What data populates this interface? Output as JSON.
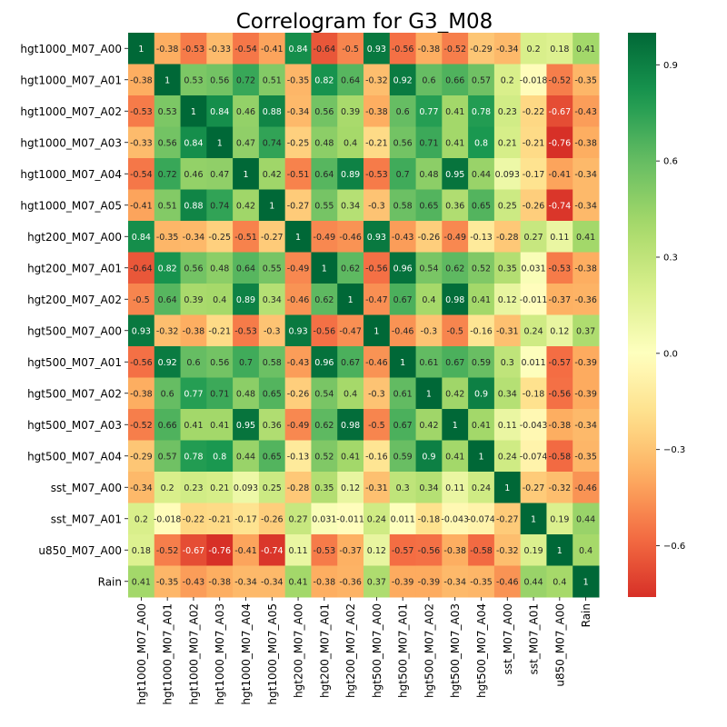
{
  "chart_data": {
    "type": "heatmap",
    "title": "Correlogram for G3_M08",
    "labels": [
      "hgt1000_M07_A00",
      "hgt1000_M07_A01",
      "hgt1000_M07_A02",
      "hgt1000_M07_A03",
      "hgt1000_M07_A04",
      "hgt1000_M07_A05",
      "hgt200_M07_A00",
      "hgt200_M07_A01",
      "hgt200_M07_A02",
      "hgt500_M07_A00",
      "hgt500_M07_A01",
      "hgt500_M07_A02",
      "hgt500_M07_A03",
      "hgt500_M07_A04",
      "sst_M07_A00",
      "sst_M07_A01",
      "u850_M07_A00",
      "Rain"
    ],
    "values": [
      [
        "1",
        "-0.38",
        "-0.53",
        "-0.33",
        "-0.54",
        "-0.41",
        "0.84",
        "-0.64",
        "-0.5",
        "0.93",
        "-0.56",
        "-0.38",
        "-0.52",
        "-0.29",
        "-0.34",
        "0.2",
        "0.18",
        "0.41"
      ],
      [
        "-0.38",
        "1",
        "0.53",
        "0.56",
        "0.72",
        "0.51",
        "-0.35",
        "0.82",
        "0.64",
        "-0.32",
        "0.92",
        "0.6",
        "0.66",
        "0.57",
        "0.2",
        "-0.018",
        "-0.52",
        "-0.35"
      ],
      [
        "-0.53",
        "0.53",
        "1",
        "0.84",
        "0.46",
        "0.88",
        "-0.34",
        "0.56",
        "0.39",
        "-0.38",
        "0.6",
        "0.77",
        "0.41",
        "0.78",
        "0.23",
        "-0.22",
        "-0.67",
        "-0.43"
      ],
      [
        "-0.33",
        "0.56",
        "0.84",
        "1",
        "0.47",
        "0.74",
        "-0.25",
        "0.48",
        "0.4",
        "-0.21",
        "0.56",
        "0.71",
        "0.41",
        "0.8",
        "0.21",
        "-0.21",
        "-0.76",
        "-0.38"
      ],
      [
        "-0.54",
        "0.72",
        "0.46",
        "0.47",
        "1",
        "0.42",
        "-0.51",
        "0.64",
        "0.89",
        "-0.53",
        "0.7",
        "0.48",
        "0.95",
        "0.44",
        "0.093",
        "-0.17",
        "-0.41",
        "-0.34"
      ],
      [
        "-0.41",
        "0.51",
        "0.88",
        "0.74",
        "0.42",
        "1",
        "-0.27",
        "0.55",
        "0.34",
        "-0.3",
        "0.58",
        "0.65",
        "0.36",
        "0.65",
        "0.25",
        "-0.26",
        "-0.74",
        "-0.34"
      ],
      [
        "0.84",
        "-0.35",
        "-0.34",
        "-0.25",
        "-0.51",
        "-0.27",
        "1",
        "-0.49",
        "-0.46",
        "0.93",
        "-0.43",
        "-0.26",
        "-0.49",
        "-0.13",
        "-0.28",
        "0.27",
        "0.11",
        "0.41"
      ],
      [
        "-0.64",
        "0.82",
        "0.56",
        "0.48",
        "0.64",
        "0.55",
        "-0.49",
        "1",
        "0.62",
        "-0.56",
        "0.96",
        "0.54",
        "0.62",
        "0.52",
        "0.35",
        "0.031",
        "-0.53",
        "-0.38"
      ],
      [
        "-0.5",
        "0.64",
        "0.39",
        "0.4",
        "0.89",
        "0.34",
        "-0.46",
        "0.62",
        "1",
        "-0.47",
        "0.67",
        "0.4",
        "0.98",
        "0.41",
        "0.12",
        "-0.011",
        "-0.37",
        "-0.36"
      ],
      [
        "0.93",
        "-0.32",
        "-0.38",
        "-0.21",
        "-0.53",
        "-0.3",
        "0.93",
        "-0.56",
        "-0.47",
        "1",
        "-0.46",
        "-0.3",
        "-0.5",
        "-0.16",
        "-0.31",
        "0.24",
        "0.12",
        "0.37"
      ],
      [
        "-0.56",
        "0.92",
        "0.6",
        "0.56",
        "0.7",
        "0.58",
        "-0.43",
        "0.96",
        "0.67",
        "-0.46",
        "1",
        "0.61",
        "0.67",
        "0.59",
        "0.3",
        "0.011",
        "-0.57",
        "-0.39"
      ],
      [
        "-0.38",
        "0.6",
        "0.77",
        "0.71",
        "0.48",
        "0.65",
        "-0.26",
        "0.54",
        "0.4",
        "-0.3",
        "0.61",
        "1",
        "0.42",
        "0.9",
        "0.34",
        "-0.18",
        "-0.56",
        "-0.39"
      ],
      [
        "-0.52",
        "0.66",
        "0.41",
        "0.41",
        "0.95",
        "0.36",
        "-0.49",
        "0.62",
        "0.98",
        "-0.5",
        "0.67",
        "0.42",
        "1",
        "0.41",
        "0.11",
        "-0.043",
        "-0.38",
        "-0.34"
      ],
      [
        "-0.29",
        "0.57",
        "0.78",
        "0.8",
        "0.44",
        "0.65",
        "-0.13",
        "0.52",
        "0.41",
        "-0.16",
        "0.59",
        "0.9",
        "0.41",
        "1",
        "0.24",
        "-0.074",
        "-0.58",
        "-0.35"
      ],
      [
        "-0.34",
        "0.2",
        "0.23",
        "0.21",
        "0.093",
        "0.25",
        "-0.28",
        "0.35",
        "0.12",
        "-0.31",
        "0.3",
        "0.34",
        "0.11",
        "0.24",
        "1",
        "-0.27",
        "-0.32",
        "-0.46"
      ],
      [
        "0.2",
        "-0.018",
        "-0.22",
        "-0.21",
        "-0.17",
        "-0.26",
        "0.27",
        "0.031",
        "-0.011",
        "0.24",
        "0.011",
        "-0.18",
        "-0.043",
        "-0.074",
        "-0.27",
        "1",
        "0.19",
        "0.44"
      ],
      [
        "0.18",
        "-0.52",
        "-0.67",
        "-0.76",
        "-0.41",
        "-0.74",
        "0.11",
        "-0.53",
        "-0.37",
        "0.12",
        "-0.57",
        "-0.56",
        "-0.38",
        "-0.58",
        "-0.32",
        "0.19",
        "1",
        "0.4"
      ],
      [
        "0.41",
        "-0.35",
        "-0.43",
        "-0.38",
        "-0.34",
        "-0.34",
        "0.41",
        "-0.38",
        "-0.36",
        "0.37",
        "-0.39",
        "-0.39",
        "-0.34",
        "-0.35",
        "-0.46",
        "0.44",
        "0.4",
        "1"
      ]
    ],
    "colormap": "RdYlGn",
    "vmin": -0.76,
    "vmax": 1,
    "colorbar_ticks": [
      {
        "value": 0.9,
        "label": "0.9"
      },
      {
        "value": 0.6,
        "label": "0.6"
      },
      {
        "value": 0.3,
        "label": "0.3"
      },
      {
        "value": 0.0,
        "label": "0.0"
      },
      {
        "value": -0.3,
        "label": "−0.3"
      },
      {
        "value": -0.6,
        "label": "−0.6"
      }
    ]
  }
}
